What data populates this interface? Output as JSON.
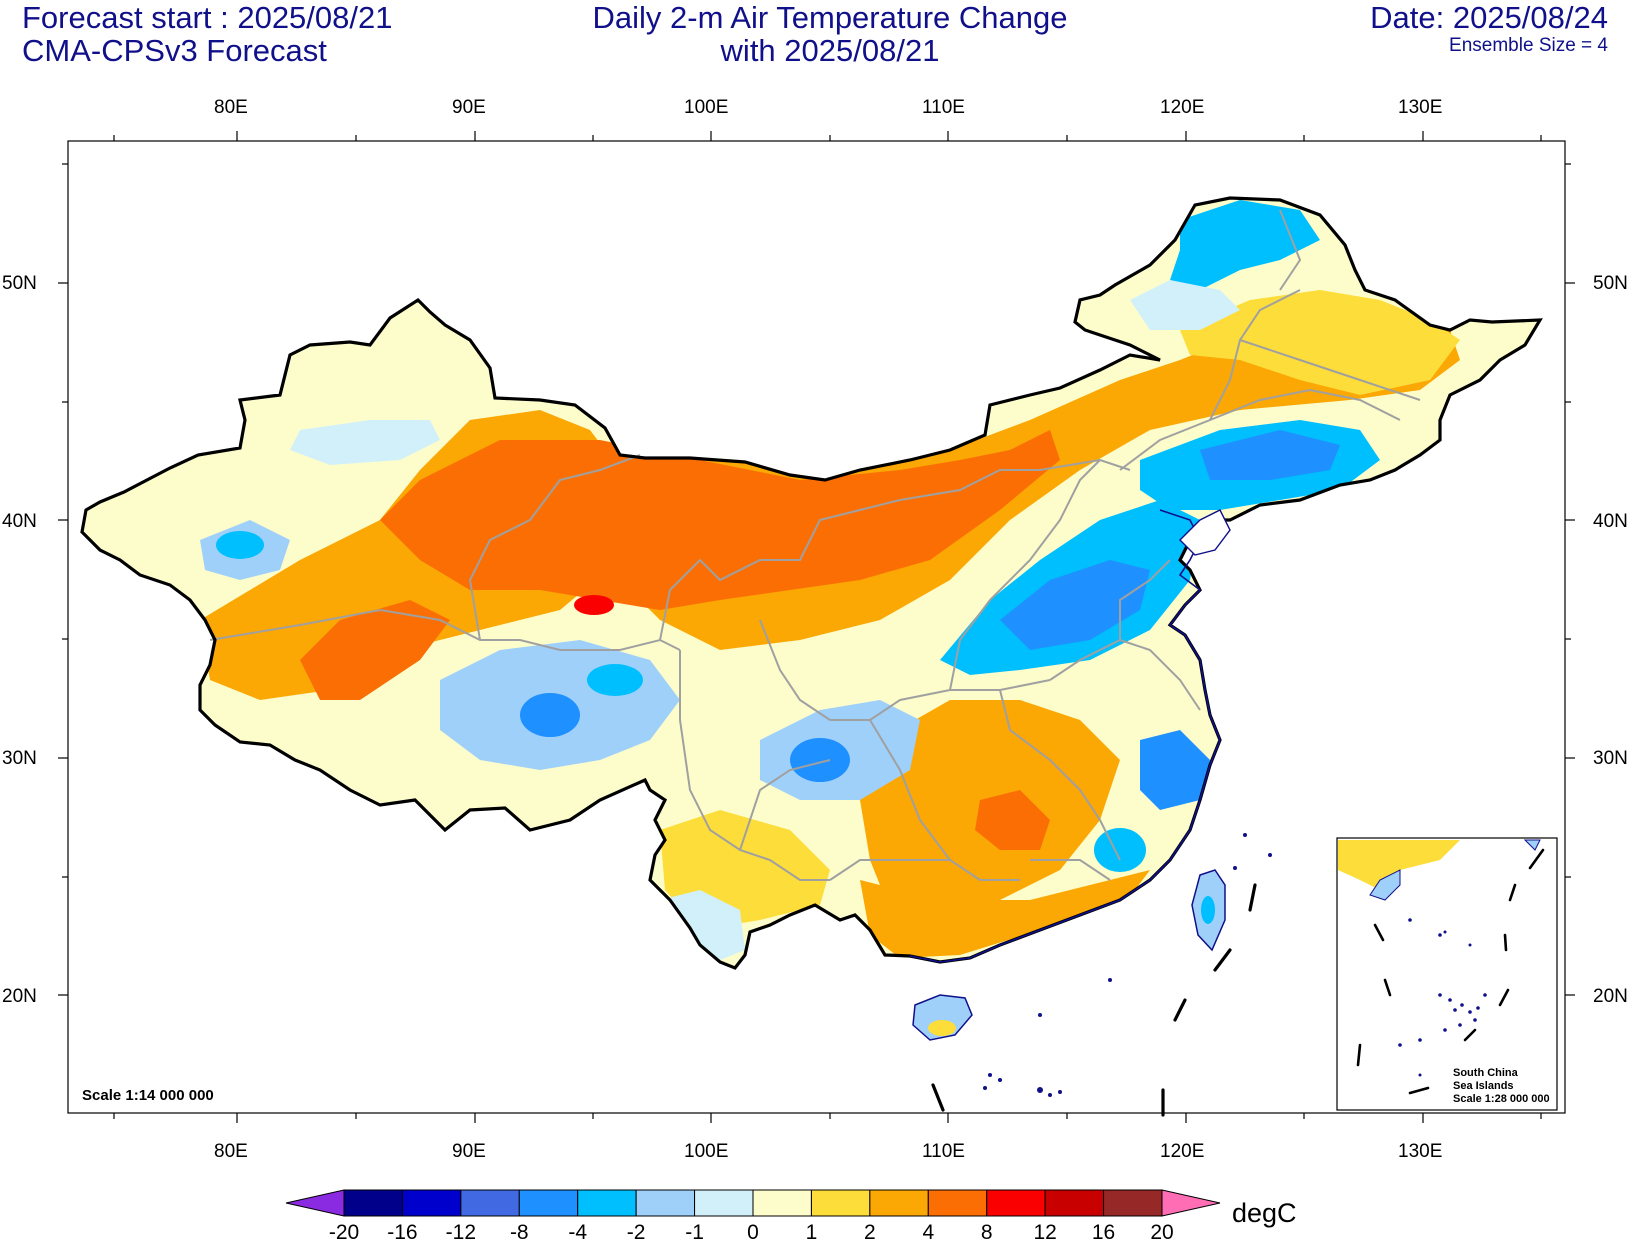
{
  "header": {
    "forecast_start": "Forecast start : 2025/08/21",
    "model": "CMA-CPSv3 Forecast",
    "title_line1": "Daily 2-m Air Temperature Change",
    "title_line2": "with 2025/08/21",
    "date": "Date: 2025/08/24",
    "ensemble": "Ensemble Size = 4"
  },
  "axes": {
    "lon_labels": [
      "80E",
      "90E",
      "100E",
      "110E",
      "120E",
      "130E"
    ],
    "lat_labels": [
      "50N",
      "40N",
      "30N",
      "20N"
    ]
  },
  "map_notes": {
    "scale": "Scale 1:14 000 000",
    "inset_line1": "South China",
    "inset_line2": "Sea Islands",
    "inset_line3": "Scale 1:28 000 000"
  },
  "colorbar": {
    "unit": "degC",
    "ticks": [
      "-20",
      "-16",
      "-12",
      "-8",
      "-4",
      "-2",
      "-1",
      "0",
      "1",
      "2",
      "4",
      "8",
      "12",
      "16",
      "20"
    ],
    "colors": {
      "below_min": "#8a2be2",
      "bins": [
        "#00008b",
        "#0000cd",
        "#4169e1",
        "#1e90ff",
        "#00bfff",
        "#9fd0fa",
        "#d2f0fa",
        "#fdfdcc",
        "#fddd3a",
        "#fba704",
        "#fb6e04",
        "#fb0000",
        "#c80000",
        "#962828"
      ],
      "above_max": "#ff6eb4"
    }
  },
  "colors": {
    "title": "#10108a",
    "coast": "#10108a",
    "border": "#000000",
    "province": "#a0a0a0"
  }
}
